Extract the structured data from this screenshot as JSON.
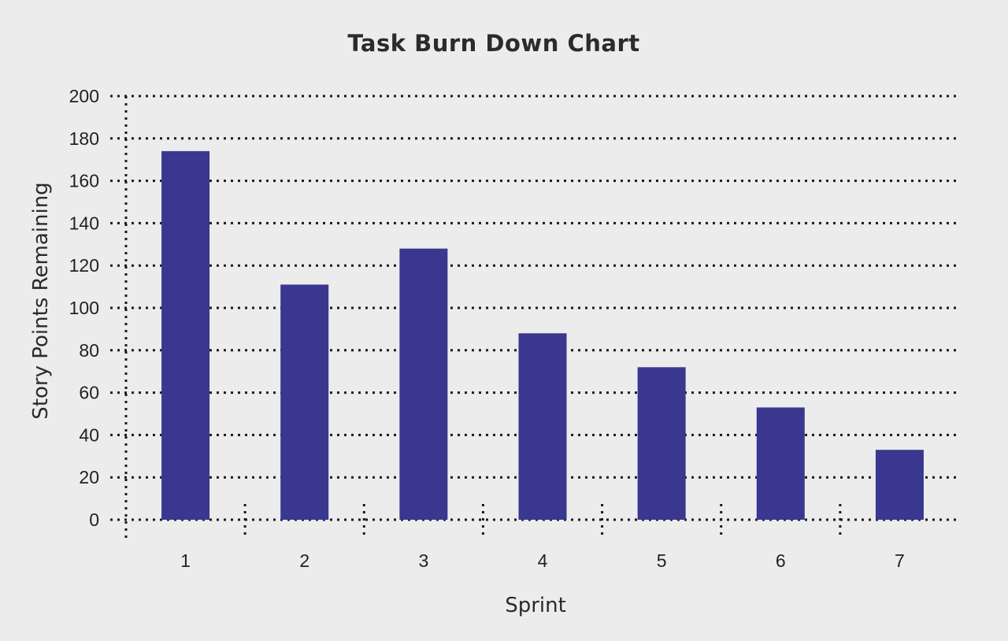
{
  "chart_data": {
    "type": "bar",
    "title": "Task Burn Down Chart",
    "xlabel": "Sprint",
    "ylabel": "Story Points Remaining",
    "categories": [
      "1",
      "2",
      "3",
      "4",
      "5",
      "6",
      "7"
    ],
    "values": [
      174,
      111,
      128,
      88,
      72,
      53,
      33
    ],
    "ylim": [
      0,
      200
    ],
    "yticks": [
      0,
      20,
      40,
      60,
      80,
      100,
      120,
      140,
      160,
      180,
      200
    ],
    "grid": true,
    "legend": "none",
    "bar_color": "#39378f",
    "grid_color": "#1a1a1a"
  }
}
